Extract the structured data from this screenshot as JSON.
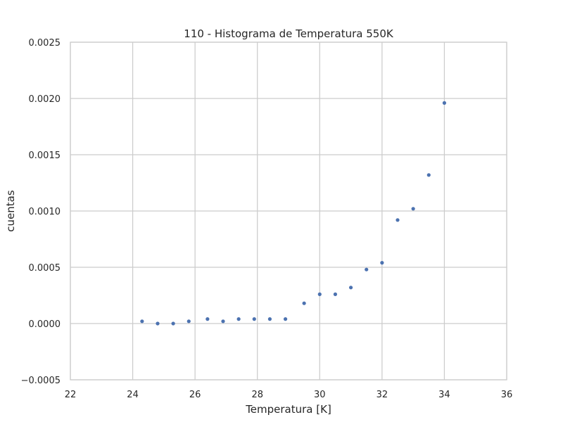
{
  "chart_data": {
    "type": "scatter",
    "title": "110 - Histograma de Temperatura 550K",
    "xlabel": "Temperatura [K]",
    "ylabel": "cuentas",
    "xlim": [
      22,
      36
    ],
    "ylim": [
      -0.0005,
      0.0025
    ],
    "xticks": [
      22,
      24,
      26,
      28,
      30,
      32,
      34,
      36
    ],
    "xtick_labels": [
      "22",
      "24",
      "26",
      "28",
      "30",
      "32",
      "34",
      "36"
    ],
    "yticks": [
      -0.0005,
      0.0,
      0.0005,
      0.001,
      0.0015,
      0.002,
      0.0025
    ],
    "ytick_labels": [
      "−0.0005",
      "0.0000",
      "0.0005",
      "0.0010",
      "0.0015",
      "0.0020",
      "0.0025"
    ],
    "grid": true,
    "marker_color": "#4c72b0",
    "points": [
      {
        "x": 24.3,
        "y": 2e-05
      },
      {
        "x": 24.8,
        "y": 0.0
      },
      {
        "x": 25.3,
        "y": 0.0
      },
      {
        "x": 25.8,
        "y": 2e-05
      },
      {
        "x": 26.4,
        "y": 4e-05
      },
      {
        "x": 26.9,
        "y": 2e-05
      },
      {
        "x": 27.4,
        "y": 4e-05
      },
      {
        "x": 27.9,
        "y": 4e-05
      },
      {
        "x": 28.4,
        "y": 4e-05
      },
      {
        "x": 28.9,
        "y": 4e-05
      },
      {
        "x": 29.5,
        "y": 0.00018
      },
      {
        "x": 30.0,
        "y": 0.00026
      },
      {
        "x": 30.5,
        "y": 0.00026
      },
      {
        "x": 31.0,
        "y": 0.00032
      },
      {
        "x": 31.5,
        "y": 0.00048
      },
      {
        "x": 32.0,
        "y": 0.00054
      },
      {
        "x": 32.5,
        "y": 0.00092
      },
      {
        "x": 33.0,
        "y": 0.00102
      },
      {
        "x": 33.5,
        "y": 0.00132
      },
      {
        "x": 34.0,
        "y": 0.00196
      }
    ]
  }
}
